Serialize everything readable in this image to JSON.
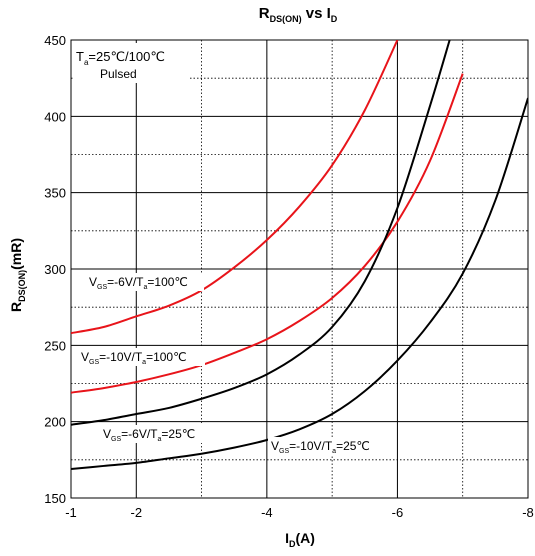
{
  "chart_data": {
    "type": "line",
    "title": {
      "main": "R",
      "sub": "DS(ON)",
      "mid": " vs I",
      "sub2": "D"
    },
    "xlabel": {
      "main": "I",
      "sub": "D",
      "rest": "(A)"
    },
    "ylabel": {
      "main": "R",
      "sub": "DS(ON)",
      "rest": "(mR)"
    },
    "xlim": [
      -1,
      -8
    ],
    "ylim": [
      150,
      450
    ],
    "x_ticks": [
      -1,
      -2,
      -4,
      -6,
      -8
    ],
    "x_tick_labels": [
      "-1",
      "-2",
      "-4",
      "-6",
      "-8"
    ],
    "y_ticks": [
      150,
      200,
      250,
      300,
      350,
      400,
      450
    ],
    "y_tick_labels": [
      "150",
      "200",
      "250",
      "300",
      "350",
      "400",
      "450"
    ],
    "grid": true,
    "note": {
      "line1_pre": "T",
      "line1_sub": "a",
      "line1_post": "=25℃/100℃",
      "line2": "Pulsed"
    },
    "series": [
      {
        "label": {
          "pre": "V",
          "sub": "GS",
          "mid": "=-6V/T",
          "sub2": "a",
          "post": "=100℃"
        },
        "color": "#e8141a",
        "x": [
          -1,
          -1.5,
          -2,
          -2.5,
          -3,
          -3.5,
          -4,
          -4.5,
          -5,
          -5.5,
          -6
        ],
        "y": [
          258,
          262,
          269,
          276,
          286,
          301,
          319,
          341,
          368,
          404,
          450
        ]
      },
      {
        "label": {
          "pre": "V",
          "sub": "GS",
          "mid": "=-10V/T",
          "sub2": "a",
          "post": "=100℃"
        },
        "color": "#e8141a",
        "x": [
          -1,
          -1.5,
          -2,
          -2.5,
          -3,
          -3.5,
          -4,
          -4.5,
          -5,
          -5.5,
          -6,
          -6.5,
          -7
        ],
        "y": [
          219,
          222,
          226,
          231,
          237,
          245,
          254,
          266,
          281,
          302,
          331,
          371,
          428
        ]
      },
      {
        "label": {
          "pre": "V",
          "sub": "GS",
          "mid": "=-6V/T",
          "sub2": "a",
          "post": "=25℃"
        },
        "color": "#000000",
        "x": [
          -1,
          -1.5,
          -2,
          -2.5,
          -3,
          -3.5,
          -4,
          -4.5,
          -5,
          -5.5,
          -6,
          -6.5,
          -6.8
        ],
        "y": [
          198,
          201,
          205,
          209,
          215,
          222,
          231,
          244,
          262,
          292,
          340,
          407,
          450
        ]
      },
      {
        "label": {
          "pre": "V",
          "sub": "GS",
          "mid": "=-10V/T",
          "sub2": "a",
          "post": "=25℃"
        },
        "color": "#000000",
        "x": [
          -1,
          -1.5,
          -2,
          -2.5,
          -3,
          -3.5,
          -4,
          -4.5,
          -5,
          -5.5,
          -6,
          -6.5,
          -7,
          -7.5,
          -8
        ],
        "y": [
          169,
          171,
          173,
          176,
          179,
          183,
          188,
          195,
          205,
          220,
          240,
          265,
          297,
          345,
          412
        ]
      }
    ]
  }
}
